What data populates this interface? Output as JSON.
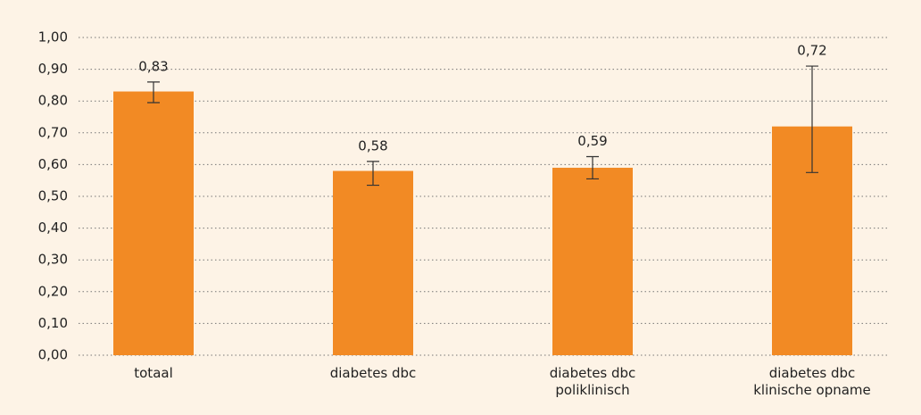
{
  "chart_data": {
    "type": "bar",
    "categories": [
      [
        "totaal"
      ],
      [
        "diabetes dbc"
      ],
      [
        "diabetes dbc",
        "poliklinisch"
      ],
      [
        "diabetes dbc",
        "klinische opname"
      ]
    ],
    "values": [
      0.83,
      0.58,
      0.59,
      0.72
    ],
    "value_labels": [
      "0,83",
      "0,58",
      "0,59",
      "0,72"
    ],
    "ci_low": [
      0.795,
      0.535,
      0.555,
      0.575
    ],
    "ci_high": [
      0.86,
      0.61,
      0.625,
      0.91
    ],
    "color": "#f28a24",
    "ylim": [
      0,
      1
    ],
    "yticks": [
      {
        "value": 0,
        "label": "0,00"
      },
      {
        "value": 0.1,
        "label": "0,10"
      },
      {
        "value": 0.2,
        "label": "0,20"
      },
      {
        "value": 0.3,
        "label": "0,30"
      },
      {
        "value": 0.4,
        "label": "0,40"
      },
      {
        "value": 0.5,
        "label": "0,50"
      },
      {
        "value": 0.6,
        "label": "0,60"
      },
      {
        "value": 0.7,
        "label": "0,70"
      },
      {
        "value": 0.8,
        "label": "0,80"
      },
      {
        "value": 0.9,
        "label": "0,90"
      },
      {
        "value": 1,
        "label": "1,00"
      }
    ],
    "grid": true
  }
}
